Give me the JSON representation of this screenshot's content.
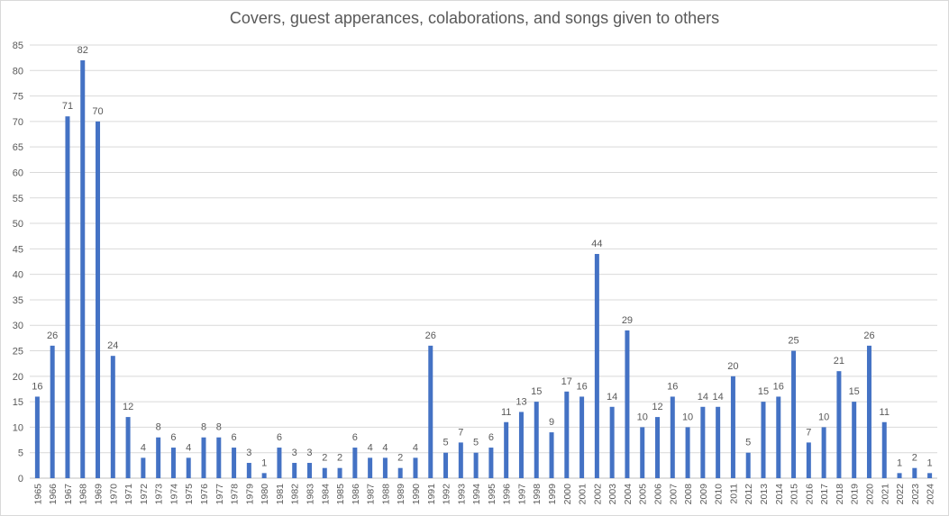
{
  "chart_data": {
    "type": "bar",
    "title": "Covers, guest apperances, colaborations, and songs given to others",
    "xlabel": "",
    "ylabel": "",
    "ylim": [
      0,
      85
    ],
    "ytick_step": 5,
    "grid": true,
    "legend": "none",
    "bar_color": "#4472C4",
    "categories": [
      "1965",
      "1966",
      "1967",
      "1968",
      "1969",
      "1970",
      "1971",
      "1972",
      "1973",
      "1974",
      "1975",
      "1976",
      "1977",
      "1978",
      "1979",
      "1980",
      "1981",
      "1982",
      "1983",
      "1984",
      "1985",
      "1986",
      "1987",
      "1988",
      "1989",
      "1990",
      "1991",
      "1992",
      "1993",
      "1994",
      "1995",
      "1996",
      "1997",
      "1998",
      "1999",
      "2000",
      "2001",
      "2002",
      "2003",
      "2004",
      "2005",
      "2006",
      "2007",
      "2008",
      "2009",
      "2010",
      "2011",
      "2012",
      "2013",
      "2014",
      "2015",
      "2016",
      "2017",
      "2018",
      "2019",
      "2020",
      "2021",
      "2022",
      "2023",
      "2024"
    ],
    "values": [
      16,
      26,
      71,
      82,
      70,
      24,
      12,
      4,
      8,
      6,
      4,
      8,
      8,
      6,
      3,
      1,
      6,
      3,
      3,
      2,
      2,
      6,
      4,
      4,
      2,
      4,
      26,
      5,
      7,
      5,
      6,
      11,
      13,
      15,
      9,
      17,
      16,
      44,
      14,
      29,
      10,
      12,
      16,
      10,
      14,
      14,
      20,
      5,
      15,
      16,
      25,
      7,
      10,
      21,
      15,
      26,
      11,
      1,
      2,
      1
    ]
  }
}
